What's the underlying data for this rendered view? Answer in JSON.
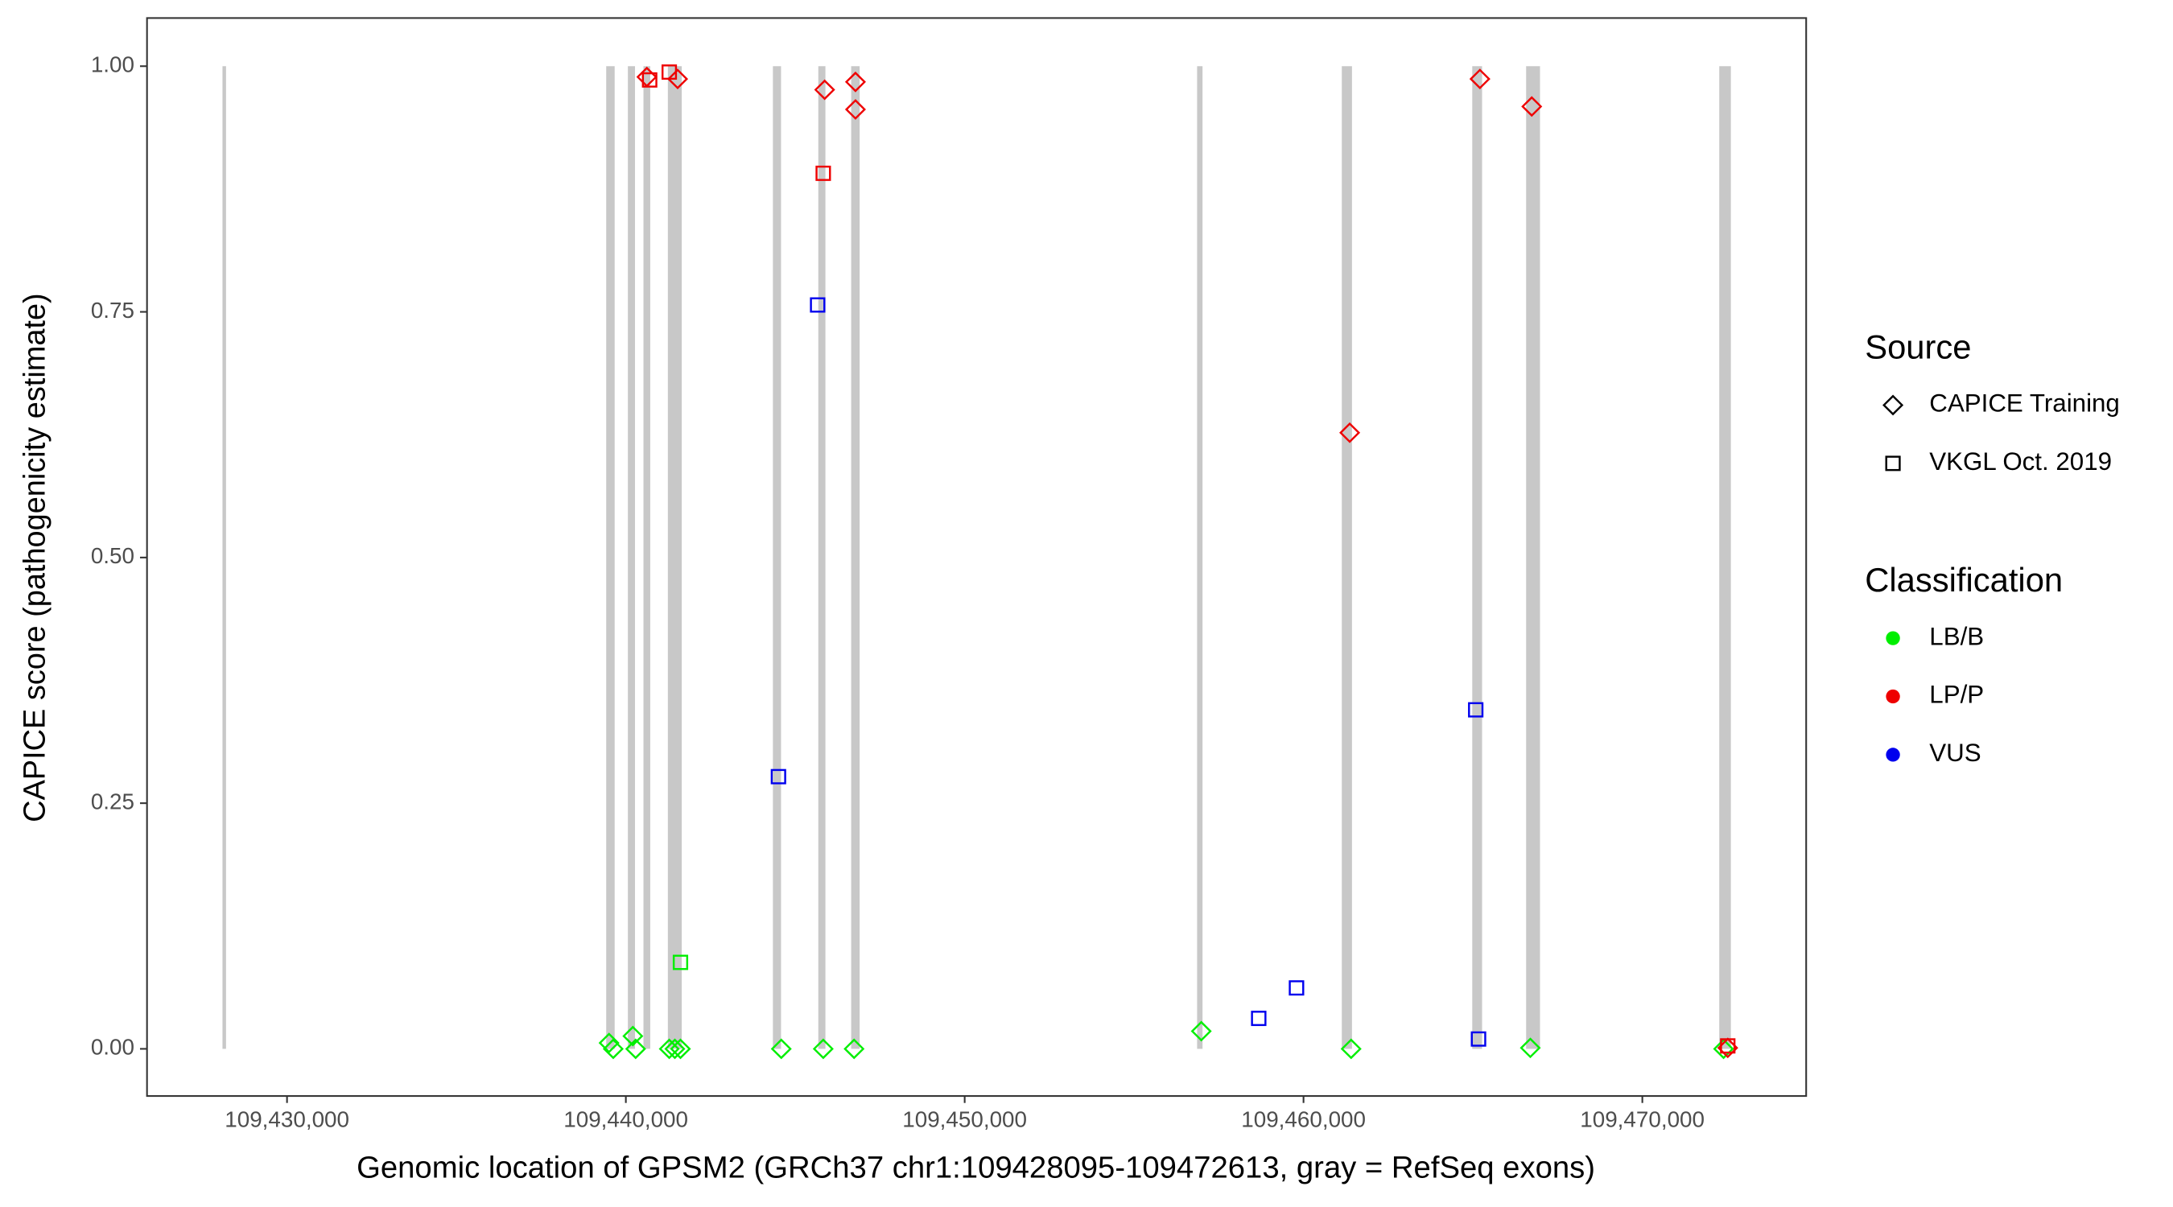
{
  "chart_data": {
    "type": "scatter",
    "x_label": "Genomic location of GPSM2 (GRCh37 chr1:109428095-109472613, gray = RefSeq exons)",
    "y_label": "CAPICE score (pathogenicity estimate)",
    "xlim": [
      109425868,
      109474835
    ],
    "ylim": [
      -0.048,
      1.049
    ],
    "xticks": [
      {
        "value": 109430000,
        "label": "109,430,000"
      },
      {
        "value": 109440000,
        "label": "109,440,000"
      },
      {
        "value": 109450000,
        "label": "109,450,000"
      },
      {
        "value": 109460000,
        "label": "109,460,000"
      },
      {
        "value": 109470000,
        "label": "109,470,000"
      }
    ],
    "yticks": [
      {
        "value": 0,
        "label": "0.00"
      },
      {
        "value": 0.25,
        "label": "0.25"
      },
      {
        "value": 0.5,
        "label": "0.50"
      },
      {
        "value": 0.75,
        "label": "0.75"
      },
      {
        "value": 1,
        "label": "1.00"
      }
    ],
    "exon_color": "#c8c8c8",
    "exons": [
      [
        109428095,
        109428200
      ],
      [
        109439420,
        109439670
      ],
      [
        109440060,
        109440270
      ],
      [
        109440520,
        109440720
      ],
      [
        109441240,
        109441650
      ],
      [
        109444340,
        109444580
      ],
      [
        109445680,
        109445890
      ],
      [
        109446650,
        109446900
      ],
      [
        109456860,
        109457020
      ],
      [
        109461130,
        109461430
      ],
      [
        109464980,
        109465270
      ],
      [
        109466570,
        109466980
      ],
      [
        109472270,
        109472613
      ]
    ],
    "source_legend_title": "Source",
    "sources": [
      {
        "name": "CAPICE Training",
        "shape": "diamond"
      },
      {
        "name": "VKGL Oct. 2019",
        "shape": "square"
      }
    ],
    "classification_legend_title": "Classification",
    "series": [
      {
        "name": "LB/B",
        "color": "#00ee00",
        "x": [
          109439504,
          109439628,
          109440207,
          109440289,
          109441281,
          109441446,
          109441612,
          109444587,
          109445826,
          109446736,
          109456983,
          109461405,
          109466694,
          109472397,
          109441612
        ],
        "values": [
          0.006,
          0,
          0.013,
          0,
          0,
          0,
          0,
          0,
          0,
          0,
          0.018,
          0,
          0.001,
          0,
          0.088
        ],
        "source": [
          "CAPICE Training",
          "CAPICE Training",
          "CAPICE Training",
          "CAPICE Training",
          "CAPICE Training",
          "CAPICE Training",
          "CAPICE Training",
          "CAPICE Training",
          "CAPICE Training",
          "CAPICE Training",
          "CAPICE Training",
          "CAPICE Training",
          "CAPICE Training",
          "CAPICE Training",
          "VKGL Oct. 2019"
        ]
      },
      {
        "name": "LP/P",
        "color": "#ee0000",
        "x": [
          109440620,
          109441529,
          109445868,
          109446777,
          109446777,
          109465207,
          109466736,
          109461364,
          109472521,
          109440702,
          109441281,
          109445826,
          109472521
        ],
        "values": [
          0.989,
          0.987,
          0.976,
          0.984,
          0.956,
          0.987,
          0.959,
          0.627,
          0.001,
          0.986,
          0.994,
          0.891,
          0.003
        ],
        "source": [
          "CAPICE Training",
          "CAPICE Training",
          "CAPICE Training",
          "CAPICE Training",
          "CAPICE Training",
          "CAPICE Training",
          "CAPICE Training",
          "CAPICE Training",
          "CAPICE Training",
          "VKGL Oct. 2019",
          "VKGL Oct. 2019",
          "VKGL Oct. 2019",
          "VKGL Oct. 2019"
        ]
      },
      {
        "name": "VUS",
        "color": "#0000ee",
        "x": [
          109445661,
          109444504,
          109465083,
          109458678,
          109459793,
          109465165
        ],
        "values": [
          0.757,
          0.277,
          0.345,
          0.031,
          0.062,
          0.01
        ],
        "source": [
          "VKGL Oct. 2019",
          "VKGL Oct. 2019",
          "VKGL Oct. 2019",
          "VKGL Oct. 2019",
          "VKGL Oct. 2019",
          "VKGL Oct. 2019"
        ]
      }
    ]
  }
}
